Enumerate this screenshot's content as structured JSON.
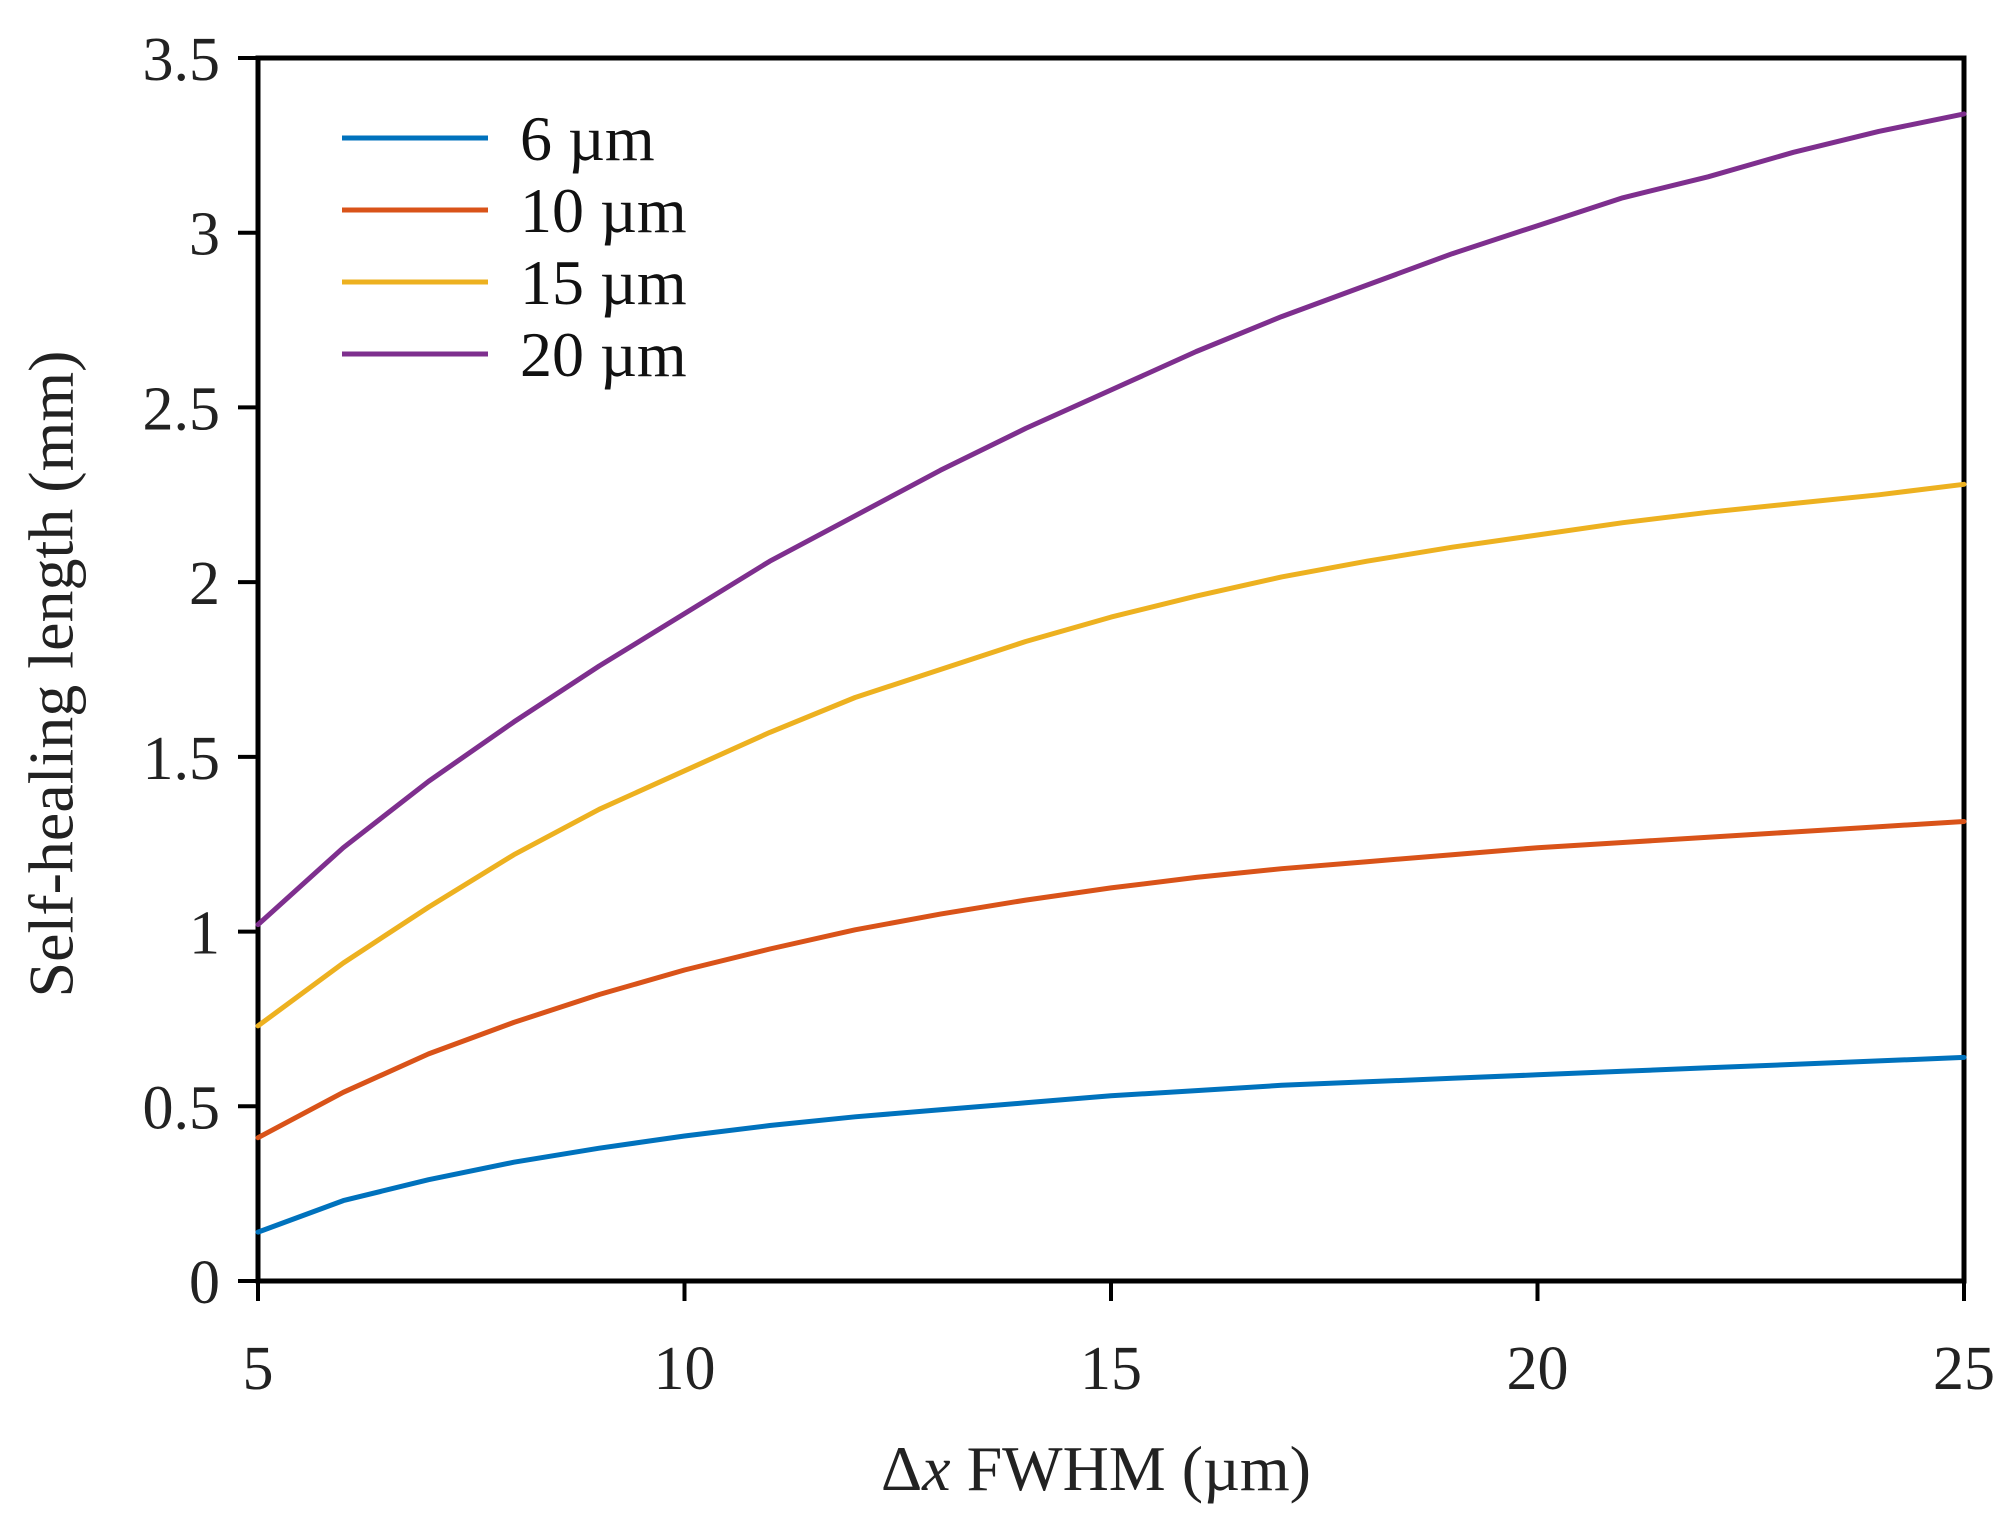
{
  "chart_data": {
    "type": "line",
    "title": "",
    "xlabel_prefix": "Δ",
    "xlabel_italic": "x",
    "xlabel_rest": " FWHM (µm)",
    "ylabel": "Self-healing length (mm)",
    "xlim": [
      5,
      25
    ],
    "ylim": [
      0,
      3.5
    ],
    "xticks": [
      5,
      10,
      15,
      20,
      25
    ],
    "xtick_labels": [
      "5",
      "10",
      "15",
      "20",
      "25"
    ],
    "yticks": [
      0,
      0.5,
      1,
      1.5,
      2,
      2.5,
      3,
      3.5
    ],
    "ytick_labels": [
      "0",
      "0.5",
      "1",
      "1.5",
      "2",
      "2.5",
      "3",
      "3.5"
    ],
    "grid": false,
    "legend_position": "top-left",
    "x": [
      5,
      6,
      7,
      8,
      9,
      10,
      11,
      12,
      13,
      14,
      15,
      16,
      17,
      18,
      19,
      20,
      21,
      22,
      23,
      24,
      25
    ],
    "series": [
      {
        "name": "6 µm",
        "color": "#0072BD",
        "values": [
          0.14,
          0.23,
          0.29,
          0.34,
          0.38,
          0.415,
          0.445,
          0.47,
          0.49,
          0.51,
          0.53,
          0.545,
          0.56,
          0.57,
          0.58,
          0.59,
          0.6,
          0.61,
          0.62,
          0.63,
          0.64
        ]
      },
      {
        "name": "10 µm",
        "color": "#D95319",
        "values": [
          0.41,
          0.54,
          0.65,
          0.74,
          0.82,
          0.89,
          0.95,
          1.005,
          1.05,
          1.09,
          1.125,
          1.155,
          1.18,
          1.2,
          1.22,
          1.24,
          1.255,
          1.27,
          1.285,
          1.3,
          1.315
        ]
      },
      {
        "name": "15 µm",
        "color": "#EDB120",
        "values": [
          0.73,
          0.91,
          1.07,
          1.22,
          1.35,
          1.46,
          1.57,
          1.67,
          1.75,
          1.83,
          1.9,
          1.96,
          2.015,
          2.06,
          2.1,
          2.135,
          2.17,
          2.2,
          2.225,
          2.25,
          2.28
        ]
      },
      {
        "name": "20 µm",
        "color": "#7E2F8E",
        "values": [
          1.02,
          1.24,
          1.43,
          1.6,
          1.76,
          1.91,
          2.06,
          2.19,
          2.32,
          2.44,
          2.55,
          2.66,
          2.76,
          2.85,
          2.94,
          3.02,
          3.1,
          3.16,
          3.23,
          3.29,
          3.34
        ]
      }
    ]
  }
}
